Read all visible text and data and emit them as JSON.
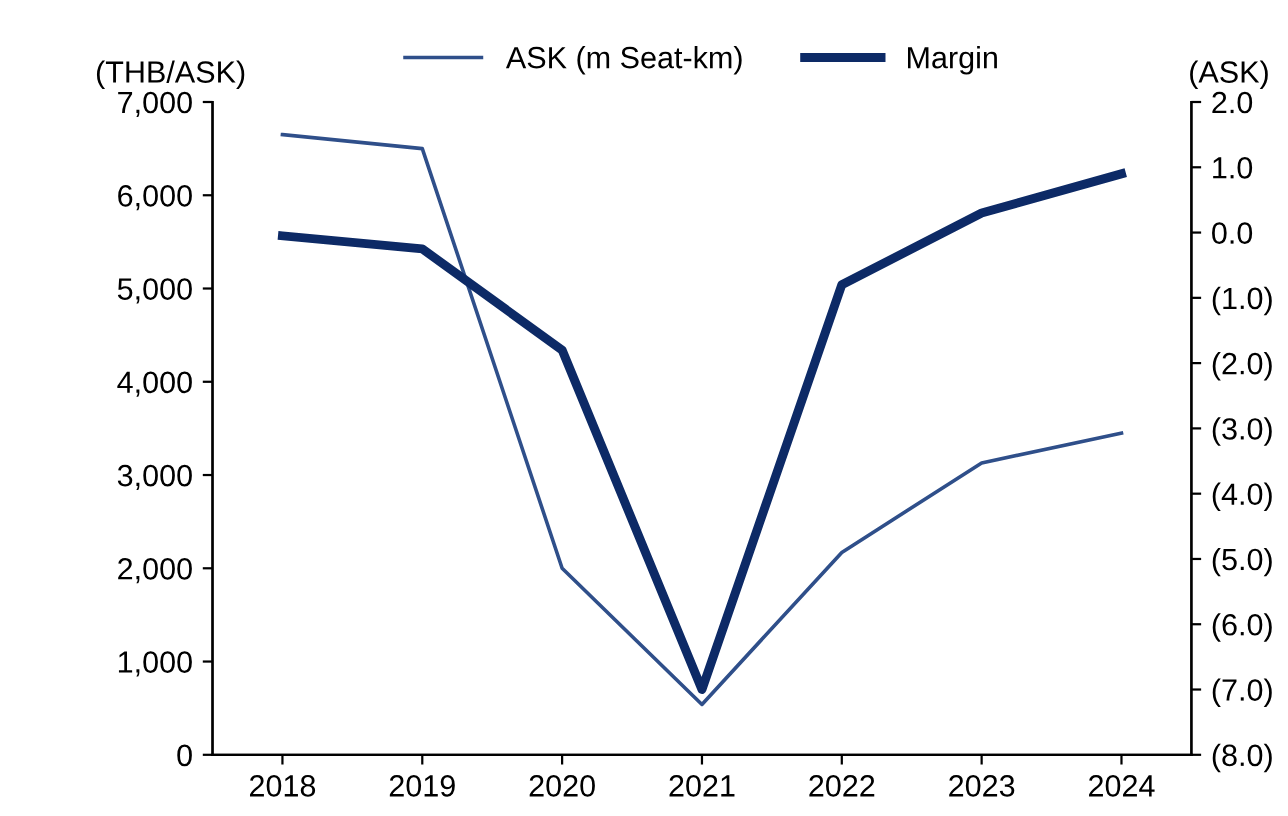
{
  "chart_data": {
    "type": "line",
    "ylabel": "(THB/ASK)",
    "y2label": "(ASK)",
    "categories": [
      "2018",
      "2019",
      "2020",
      "2021",
      "2022",
      "2023",
      "2024"
    ],
    "series": [
      {
        "name": "ASK (m Seat-km)",
        "color": "#2f4f8a",
        "values": [
          6650,
          6500,
          2000,
          540,
          2170,
          3130,
          3450
        ]
      },
      {
        "name": "Margin",
        "color": "#0d2a66",
        "axis": "y2",
        "values": [
          -0.05,
          -0.25,
          -1.8,
          -7.0,
          -0.8,
          0.3,
          0.9
        ]
      }
    ],
    "ylim": [
      0,
      7000
    ],
    "yticks": [
      0,
      {
        "value": 1000,
        "label": "1,000"
      },
      {
        "value": 2000,
        "label": "2,000"
      },
      {
        "value": 3000,
        "label": "3,000"
      },
      {
        "value": 4000,
        "label": "4,000"
      },
      {
        "value": 5000,
        "label": "5,000"
      },
      {
        "value": 6000,
        "label": "6,000"
      },
      {
        "value": 7000,
        "label": "7,000"
      }
    ],
    "y2lim": [
      -8,
      2
    ],
    "y2ticks": [
      {
        "value": -8,
        "label": "(8.0)"
      },
      {
        "value": -7,
        "label": "(7.0)"
      },
      {
        "value": -6,
        "label": "(6.0)"
      },
      {
        "value": -5,
        "label": "(5.0)"
      },
      {
        "value": -4,
        "label": "(4.0)"
      },
      {
        "value": -3,
        "label": "(3.0)"
      },
      {
        "value": -2,
        "label": "(2.0)"
      },
      {
        "value": -1,
        "label": "(1.0)"
      },
      {
        "value": 0,
        "label": "0.0"
      },
      {
        "value": 1,
        "label": "1.0"
      },
      {
        "value": 2,
        "label": "2.0"
      }
    ],
    "legend": "top",
    "grid": false,
    "marker": "none",
    "line_style": "solid"
  }
}
